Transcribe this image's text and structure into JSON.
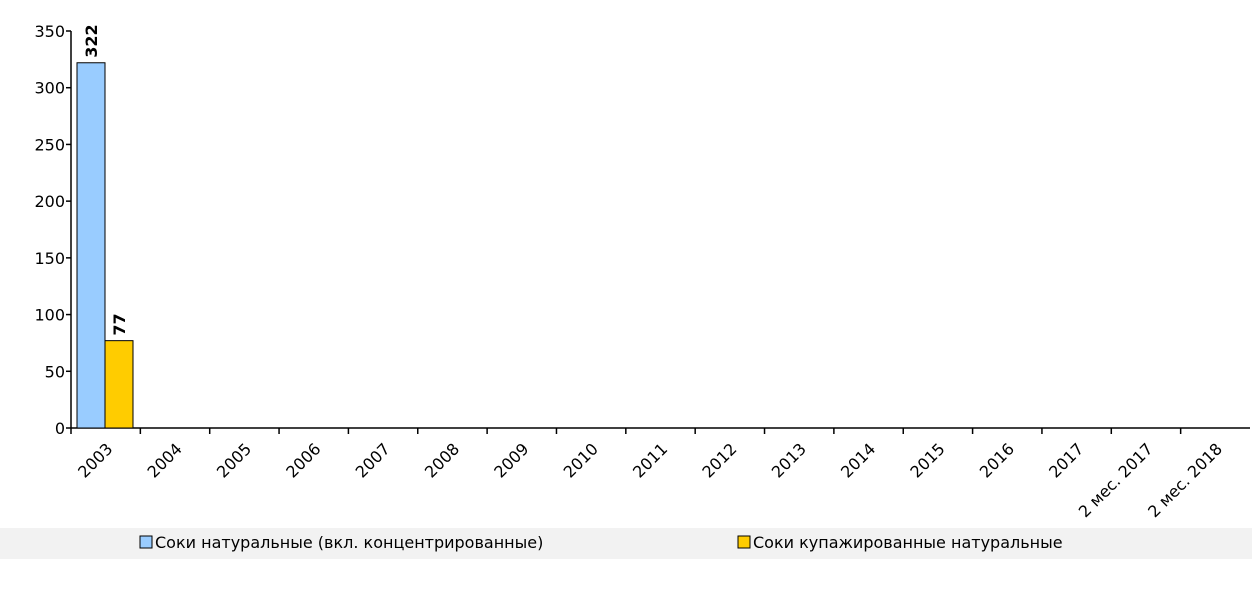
{
  "chart_data": {
    "type": "bar",
    "categories": [
      "2003",
      "2004",
      "2005",
      "2006",
      "2007",
      "2008",
      "2009",
      "2010",
      "2011",
      "2012",
      "2013",
      "2014",
      "2015",
      "2016",
      "2017",
      "2 мес. 2017",
      "2 мес. 2018"
    ],
    "series": [
      {
        "name": "Соки натуральные (вкл. концентрированные)",
        "color": "#99ccff",
        "values": [
          322,
          null,
          null,
          null,
          null,
          null,
          null,
          null,
          null,
          null,
          null,
          null,
          null,
          null,
          null,
          null,
          null
        ]
      },
      {
        "name": "Соки купажированные натуральные",
        "color": "#ffcc00",
        "values": [
          77,
          null,
          null,
          null,
          null,
          null,
          null,
          null,
          null,
          null,
          null,
          null,
          null,
          null,
          null,
          null,
          null
        ]
      }
    ],
    "ylim": [
      0,
      350
    ],
    "yticks": [
      0,
      50,
      100,
      150,
      200,
      250,
      300,
      350
    ],
    "legend": "bottom",
    "data_labels": true
  }
}
